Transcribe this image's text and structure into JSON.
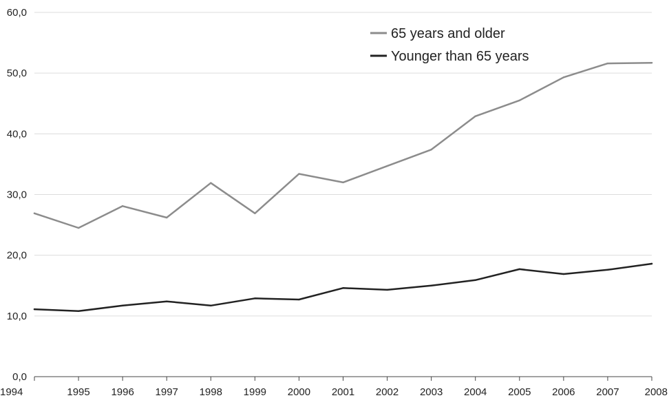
{
  "chart_data": {
    "type": "line",
    "title": "",
    "xlabel": "",
    "ylabel": "",
    "x": [
      "1994",
      "1995",
      "1996",
      "1997",
      "1998",
      "1999",
      "2000",
      "2001",
      "2002",
      "2003",
      "2004",
      "2005",
      "2006",
      "2007",
      "2008"
    ],
    "ylim": [
      0,
      60
    ],
    "yticks": [
      "0,0",
      "10,0",
      "20,0",
      "30,0",
      "40,0",
      "50,0",
      "60,0"
    ],
    "grid": "horizontal",
    "legend_position": "top-right",
    "series": [
      {
        "name": "65 years and older",
        "color": "#8c8c8c",
        "values": [
          26.9,
          24.5,
          28.1,
          26.2,
          31.9,
          26.9,
          33.4,
          32.0,
          34.7,
          37.4,
          42.9,
          45.5,
          49.3,
          51.6,
          51.7
        ]
      },
      {
        "name": "Younger than 65 years",
        "color": "#222222",
        "values": [
          11.1,
          10.8,
          11.7,
          12.4,
          11.7,
          12.9,
          12.7,
          14.6,
          14.3,
          15.0,
          15.9,
          17.7,
          16.9,
          17.6,
          18.6
        ]
      }
    ]
  }
}
